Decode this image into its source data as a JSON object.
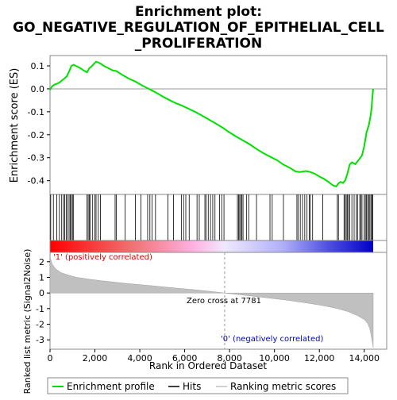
{
  "chart_data": {
    "type": "line",
    "title_lines": [
      "Enrichment plot:",
      "GO_NEGATIVE_REGULATION_OF_EPITHELIAL_CELL",
      "_PROLIFERATION"
    ],
    "es_panel": {
      "ylabel": "Enrichment score (ES)",
      "ylim": [
        -0.46,
        0.145
      ],
      "yticks": [
        0.1,
        0.0,
        -0.1,
        -0.2,
        -0.3,
        -0.4
      ],
      "ytick_labels": [
        "0.1",
        "0.0",
        "-0.1",
        "-0.2",
        "-0.3",
        "-0.4"
      ],
      "color": "#00e000",
      "series_name": "Enrichment profile",
      "x": [
        0,
        100,
        200,
        350,
        450,
        550,
        650,
        750,
        850,
        950,
        1050,
        1200,
        1350,
        1500,
        1650,
        1750,
        1850,
        1950,
        2050,
        2150,
        2250,
        2400,
        2600,
        2800,
        2950,
        3200,
        3500,
        3800,
        4100,
        4400,
        4700,
        5000,
        5300,
        5600,
        5900,
        6200,
        6500,
        6800,
        7100,
        7400,
        7700,
        8000,
        8300,
        8600,
        8900,
        9200,
        9500,
        9800,
        10100,
        10400,
        10700,
        10950,
        11150,
        11400,
        11600,
        11800,
        12000,
        12200,
        12400,
        12600,
        12750,
        12850,
        12950,
        13050,
        13150,
        13250,
        13350,
        13450,
        13600,
        13750,
        13900,
        14000,
        14100,
        14200,
        14280,
        14330,
        14360,
        14400
      ],
      "y": [
        -0.005,
        0.012,
        0.018,
        0.024,
        0.03,
        0.038,
        0.046,
        0.055,
        0.075,
        0.1,
        0.105,
        0.098,
        0.09,
        0.08,
        0.072,
        0.09,
        0.098,
        0.108,
        0.118,
        0.115,
        0.11,
        0.1,
        0.09,
        0.08,
        0.078,
        0.062,
        0.045,
        0.032,
        0.015,
        0.0,
        -0.015,
        -0.032,
        -0.048,
        -0.062,
        -0.074,
        -0.088,
        -0.102,
        -0.118,
        -0.135,
        -0.152,
        -0.17,
        -0.19,
        -0.208,
        -0.225,
        -0.242,
        -0.262,
        -0.28,
        -0.295,
        -0.31,
        -0.33,
        -0.345,
        -0.36,
        -0.362,
        -0.358,
        -0.362,
        -0.37,
        -0.382,
        -0.392,
        -0.405,
        -0.42,
        -0.425,
        -0.412,
        -0.405,
        -0.41,
        -0.4,
        -0.37,
        -0.33,
        -0.32,
        -0.328,
        -0.31,
        -0.29,
        -0.25,
        -0.19,
        -0.16,
        -0.12,
        -0.08,
        -0.04,
        0.0
      ]
    },
    "hits": [
      30,
      150,
      300,
      420,
      520,
      600,
      650,
      720,
      780,
      850,
      900,
      950,
      1000,
      1050,
      1650,
      1700,
      1750,
      1800,
      1900,
      2000,
      2050,
      2150,
      2250,
      2900,
      2950,
      3350,
      3800,
      4050,
      4350,
      4450,
      4550,
      4700,
      5250,
      5500,
      5850,
      5950,
      6050,
      6200,
      6550,
      6650,
      6900,
      6950,
      7050,
      7150,
      7250,
      7350,
      7550,
      7650,
      7750,
      8350,
      8400,
      8450,
      8500,
      8550,
      8600,
      8750,
      8850,
      9200,
      9800,
      9900,
      10400,
      11000,
      11050,
      11150,
      11250,
      11350,
      11450,
      11550,
      11600,
      11700,
      12150,
      12800,
      12850,
      13100,
      13150,
      13200,
      13250,
      13300,
      13350,
      13450,
      13550,
      13650,
      13700,
      13800,
      13850,
      13900,
      14000,
      14050,
      14100,
      14150,
      14200,
      14250,
      14300,
      14350,
      14380
    ],
    "heatmap_labels": {
      "positive": "'1' (positively correlated)",
      "negative": "'0' (negatively correlated)"
    },
    "metric_panel": {
      "ylabel": "Ranked list metric (Signal2Noise)",
      "ylim": [
        -3.6,
        2.6
      ],
      "yticks": [
        2,
        1,
        0,
        -1,
        -2,
        -3
      ],
      "ytick_labels": [
        "2",
        "1",
        "0",
        "-1",
        "-2",
        "-3"
      ],
      "series_name": "Ranking metric scores",
      "x": [
        0,
        100,
        250,
        500,
        800,
        1200,
        1800,
        2500,
        3500,
        4500,
        5500,
        6500,
        7300,
        7781,
        8500,
        9500,
        10500,
        11500,
        12200,
        12800,
        13300,
        13700,
        14000,
        14150,
        14250,
        14320,
        14380,
        14400
      ],
      "y": [
        2.3,
        1.85,
        1.55,
        1.3,
        1.15,
        1.0,
        0.87,
        0.75,
        0.6,
        0.47,
        0.33,
        0.2,
        0.08,
        0.0,
        -0.12,
        -0.28,
        -0.45,
        -0.65,
        -0.82,
        -1.0,
        -1.2,
        -1.45,
        -1.7,
        -1.95,
        -2.3,
        -2.8,
        -3.3,
        -3.5
      ],
      "zero_cross": 7781,
      "zero_cross_label": "Zero cross at 7781"
    },
    "xaxis": {
      "xlabel": "Rank in Ordered Dataset",
      "xlim": [
        0,
        15000
      ],
      "max_rank": 14400,
      "xticks": [
        0,
        2000,
        4000,
        6000,
        8000,
        10000,
        12000,
        14000
      ],
      "xtick_labels": [
        "0",
        "2,000",
        "4,000",
        "6,000",
        "8,000",
        "10,000",
        "12,000",
        "14,000"
      ]
    },
    "legend": {
      "placement": "bottom",
      "items": [
        {
          "label": "Enrichment profile",
          "color": "#00e000"
        },
        {
          "label": "Hits",
          "color": "#000000"
        },
        {
          "label": "Ranking metric scores",
          "color": "#c0c0c0"
        }
      ]
    }
  }
}
